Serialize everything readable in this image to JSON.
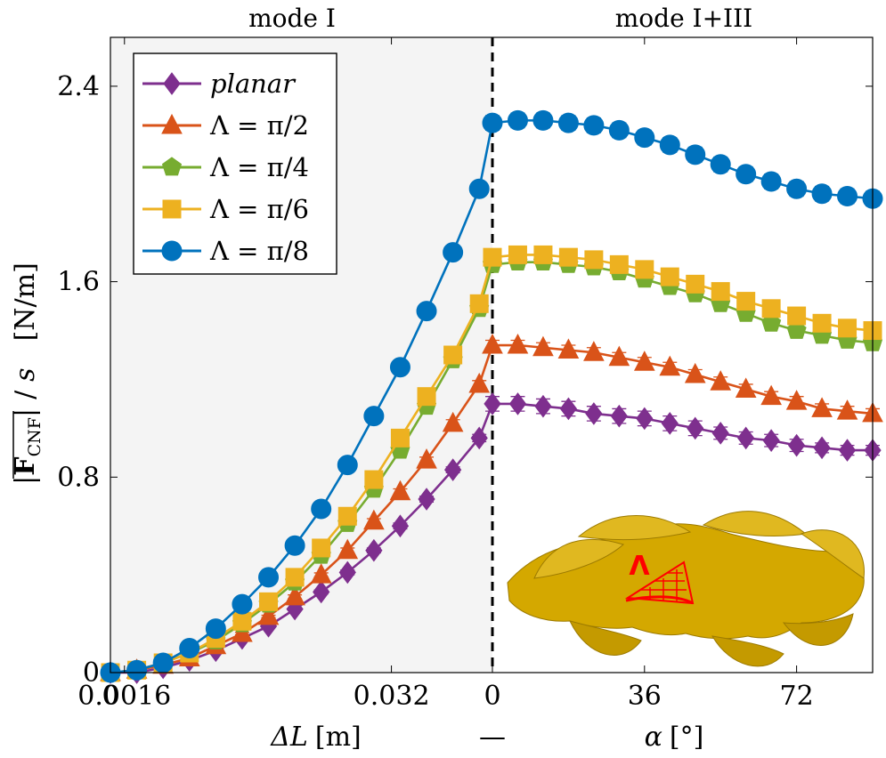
{
  "panel_titles": {
    "left": "mode I",
    "right": "mode I+III"
  },
  "ylabel": "|F_CNF| / s  [N/m]",
  "ylabel_parts": {
    "vertical_bar_open": "|",
    "F": "F",
    "sub": "CNF",
    "vertical_bar_close": "|",
    "slash": "/",
    "s": "s",
    "unit": "[N/m]"
  },
  "xlabel_left": {
    "delta": "ΔL",
    "unit": "[m]"
  },
  "xlabel_mid": "—",
  "xlabel_right": {
    "alpha": "α",
    "unit": "[°]"
  },
  "inset": {
    "label": "Λ"
  },
  "colors": {
    "planar": "#7E2F8E",
    "pi2": "#D95319",
    "pi4": "#77AC30",
    "pi6": "#EDB120",
    "pi8": "#0072BD",
    "shade": "#F4F4F4",
    "inset_body": "#D4A800",
    "inset_mark": "#FF0000"
  },
  "chart_data": {
    "type": "line",
    "title": "",
    "ylim": [
      0,
      2.6
    ],
    "yticks": [
      0,
      0.8,
      1.6,
      2.4
    ],
    "ytick_labels": [
      "0",
      "0.8",
      "1.6",
      "2.4"
    ],
    "legend_position": "top-left",
    "grid": false,
    "error_bars": true,
    "left_panel": {
      "xlabel": "ΔL [m]",
      "xlim": [
        0,
        0.0435
      ],
      "xticks": [
        0,
        0.0016,
        0.032
      ],
      "xtick_labels": [
        "0",
        "0.0016",
        "0.032"
      ],
      "x": [
        0,
        0.003,
        0.006,
        0.009,
        0.012,
        0.015,
        0.018,
        0.021,
        0.024,
        0.027,
        0.03,
        0.033,
        0.036,
        0.039,
        0.042
      ]
    },
    "right_panel": {
      "xlabel": "α [°]",
      "xlim": [
        0,
        90
      ],
      "xticks": [
        0,
        36,
        72
      ],
      "xtick_labels": [
        "0",
        "36",
        "72"
      ],
      "x": [
        0,
        6,
        12,
        18,
        24,
        30,
        36,
        42,
        48,
        54,
        60,
        66,
        72,
        78,
        84,
        90
      ]
    },
    "series": [
      {
        "name": "planar",
        "marker": "diamond",
        "color": "#7E2F8E",
        "left_values": [
          0,
          0,
          0.02,
          0.05,
          0.09,
          0.14,
          0.19,
          0.26,
          0.33,
          0.41,
          0.5,
          0.6,
          0.71,
          0.83,
          0.96
        ],
        "right_values": [
          1.1,
          1.1,
          1.09,
          1.08,
          1.06,
          1.05,
          1.04,
          1.02,
          1.0,
          0.98,
          0.96,
          0.95,
          0.93,
          0.92,
          0.91,
          0.91
        ],
        "left_err": [
          0,
          0,
          0,
          0,
          0,
          0,
          0.005,
          0.005,
          0.008,
          0.01,
          0.01,
          0.012,
          0.012,
          0.012,
          0.015
        ],
        "right_err": [
          0.03,
          0.03,
          0.03,
          0.03,
          0.03,
          0.03,
          0.03,
          0.03,
          0.03,
          0.025,
          0.025,
          0.025,
          0.025,
          0.02,
          0.02,
          0.02
        ]
      },
      {
        "name": "Λ = π/2",
        "marker": "triangle",
        "color": "#D95319",
        "left_values": [
          0,
          0.01,
          0.03,
          0.06,
          0.11,
          0.16,
          0.23,
          0.31,
          0.4,
          0.5,
          0.62,
          0.74,
          0.87,
          1.02,
          1.18
        ],
        "right_values": [
          1.34,
          1.34,
          1.33,
          1.32,
          1.31,
          1.29,
          1.27,
          1.25,
          1.22,
          1.19,
          1.16,
          1.13,
          1.11,
          1.08,
          1.07,
          1.06
        ],
        "left_err": [
          0,
          0,
          0,
          0,
          0,
          0.005,
          0.005,
          0.008,
          0.008,
          0.01,
          0.01,
          0.012,
          0.012,
          0.015,
          0.015
        ],
        "right_err": [
          0.02,
          0.02,
          0.02,
          0.02,
          0.02,
          0.02,
          0.02,
          0.02,
          0.02,
          0.02,
          0.02,
          0.02,
          0.02,
          0.02,
          0.02,
          0.02
        ]
      },
      {
        "name": "Λ = π/4",
        "marker": "pentagon",
        "color": "#77AC30",
        "left_values": [
          0,
          0.01,
          0.04,
          0.08,
          0.13,
          0.2,
          0.28,
          0.37,
          0.48,
          0.61,
          0.75,
          0.91,
          1.09,
          1.28,
          1.49
        ],
        "right_values": [
          1.67,
          1.68,
          1.68,
          1.67,
          1.66,
          1.64,
          1.61,
          1.58,
          1.55,
          1.51,
          1.47,
          1.43,
          1.4,
          1.38,
          1.36,
          1.35
        ],
        "left_err": [
          0,
          0,
          0,
          0,
          0.005,
          0.005,
          0.008,
          0.008,
          0.01,
          0.01,
          0.012,
          0.012,
          0.015,
          0.015,
          0.02
        ],
        "right_err": [
          0.02,
          0.02,
          0.02,
          0.02,
          0.02,
          0.02,
          0.02,
          0.02,
          0.02,
          0.02,
          0.02,
          0.02,
          0.02,
          0.02,
          0.02,
          0.02
        ]
      },
      {
        "name": "Λ = π/6",
        "marker": "square",
        "color": "#EDB120",
        "left_values": [
          0,
          0.01,
          0.04,
          0.08,
          0.14,
          0.21,
          0.29,
          0.39,
          0.51,
          0.64,
          0.79,
          0.96,
          1.13,
          1.3,
          1.51
        ],
        "right_values": [
          1.7,
          1.71,
          1.71,
          1.7,
          1.69,
          1.67,
          1.65,
          1.62,
          1.59,
          1.56,
          1.52,
          1.49,
          1.46,
          1.43,
          1.41,
          1.4
        ],
        "left_err": [
          0,
          0,
          0,
          0,
          0.005,
          0.005,
          0.008,
          0.008,
          0.01,
          0.01,
          0.012,
          0.012,
          0.015,
          0.015,
          0.02
        ],
        "right_err": [
          0.02,
          0.02,
          0.02,
          0.02,
          0.02,
          0.02,
          0.02,
          0.02,
          0.02,
          0.02,
          0.02,
          0.02,
          0.02,
          0.02,
          0.02,
          0.02
        ]
      },
      {
        "name": "Λ = π/8",
        "marker": "circle",
        "color": "#0072BD",
        "left_values": [
          0,
          0.01,
          0.04,
          0.1,
          0.18,
          0.28,
          0.39,
          0.52,
          0.67,
          0.85,
          1.05,
          1.25,
          1.48,
          1.72,
          1.98
        ],
        "right_values": [
          2.25,
          2.26,
          2.26,
          2.25,
          2.24,
          2.22,
          2.19,
          2.16,
          2.12,
          2.08,
          2.04,
          2.01,
          1.98,
          1.96,
          1.95,
          1.94
        ],
        "left_err": [
          0,
          0,
          0,
          0,
          0.005,
          0.005,
          0.008,
          0.008,
          0.01,
          0.01,
          0.012,
          0.012,
          0.015,
          0.015,
          0.02
        ],
        "right_err": [
          0.03,
          0.03,
          0.03,
          0.03,
          0.03,
          0.03,
          0.03,
          0.03,
          0.03,
          0.03,
          0.03,
          0.03,
          0.03,
          0.03,
          0.03,
          0.03
        ]
      }
    ]
  }
}
